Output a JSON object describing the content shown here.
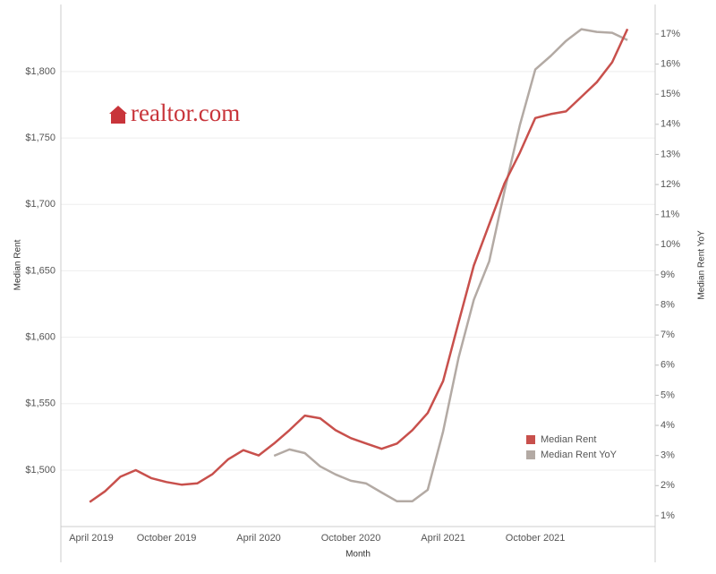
{
  "chart_data": {
    "type": "line",
    "logo": "realtor.com",
    "xlabel": "Month",
    "ylabel": "Median Rent",
    "y2label": "Median Rent YoY",
    "categories": [
      "April 2019",
      null,
      null,
      null,
      null,
      null,
      "October 2019",
      null,
      null,
      null,
      null,
      null,
      "April 2020",
      null,
      null,
      null,
      null,
      null,
      "October 2020",
      null,
      null,
      null,
      null,
      null,
      "April 2021",
      null,
      null,
      null,
      null,
      null,
      "October 2021",
      null,
      null,
      null,
      null,
      null,
      null
    ],
    "series": [
      {
        "name": "Median Rent",
        "color": "#c8504c",
        "axis": "y",
        "values": [
          null,
          1476,
          1484,
          1495,
          1500,
          1494,
          1491,
          1489,
          1490,
          1497,
          1508,
          1515,
          1511,
          1520,
          1530,
          1541,
          1539,
          1530,
          1524,
          1520,
          1516,
          1520,
          1530,
          1543,
          1567,
          1611,
          1654,
          1685,
          1716,
          1739,
          1765,
          1768,
          1770,
          1781,
          1792,
          1807,
          1832
        ]
      },
      {
        "name": "Median Rent YoY",
        "color": "#b3aaa4",
        "axis": "y2",
        "values": [
          null,
          null,
          null,
          null,
          null,
          null,
          null,
          null,
          null,
          null,
          null,
          null,
          null,
          2.99,
          3.2,
          3.08,
          2.64,
          2.37,
          2.16,
          2.07,
          1.77,
          1.48,
          1.48,
          1.86,
          3.8,
          6.24,
          8.17,
          9.45,
          11.8,
          13.98,
          15.82,
          16.27,
          16.77,
          17.16,
          17.07,
          17.04,
          16.8
        ]
      }
    ],
    "ylim": [
      1457.5,
      1850.5
    ],
    "yticks": [
      {
        "value": 1500,
        "label": "$1,500"
      },
      {
        "value": 1550,
        "label": "$1,550"
      },
      {
        "value": 1600,
        "label": "$1,600"
      },
      {
        "value": 1650,
        "label": "$1,650"
      },
      {
        "value": 1700,
        "label": "$1,700"
      },
      {
        "value": 1750,
        "label": "$1,750"
      },
      {
        "value": 1800,
        "label": "$1,800"
      }
    ],
    "y2lim": [
      0.64,
      17.98
    ],
    "y2ticks": [
      {
        "value": 1,
        "label": "1%"
      },
      {
        "value": 2,
        "label": "2%"
      },
      {
        "value": 3,
        "label": "3%"
      },
      {
        "value": 4,
        "label": "4%"
      },
      {
        "value": 5,
        "label": "5%"
      },
      {
        "value": 6,
        "label": "6%"
      },
      {
        "value": 7,
        "label": "7%"
      },
      {
        "value": 8,
        "label": "8%"
      },
      {
        "value": 9,
        "label": "9%"
      },
      {
        "value": 10,
        "label": "10%"
      },
      {
        "value": 11,
        "label": "11%"
      },
      {
        "value": 12,
        "label": "12%"
      },
      {
        "value": 13,
        "label": "13%"
      },
      {
        "value": 14,
        "label": "14%"
      },
      {
        "value": 15,
        "label": "15%"
      },
      {
        "value": 16,
        "label": "16%"
      },
      {
        "value": 17,
        "label": "17%"
      }
    ],
    "grid": true,
    "legend": "lower-right"
  }
}
